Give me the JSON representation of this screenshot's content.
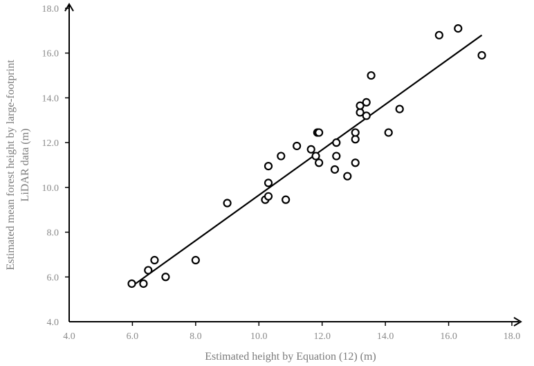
{
  "chart_data": {
    "type": "scatter",
    "xlabel": "Estimated height by Equation (12) (m)",
    "ylabel_lines": [
      "Estimated mean forest height by large-footprint",
      "LiDAR data (m)"
    ],
    "xlim": [
      4.0,
      18.0
    ],
    "ylim": [
      4.0,
      18.0
    ],
    "xticks": [
      "4.0",
      "6.0",
      "8.0",
      "10.0",
      "12.0",
      "14.0",
      "16.0",
      "18.0"
    ],
    "yticks": [
      "4.0",
      "6.0",
      "8.0",
      "10.0",
      "12.0",
      "14.0",
      "16.0",
      "18.0"
    ],
    "grid": false,
    "points": [
      [
        5.98,
        5.7
      ],
      [
        6.35,
        5.7
      ],
      [
        6.5,
        6.3
      ],
      [
        6.7,
        6.75
      ],
      [
        7.05,
        6.0
      ],
      [
        8.0,
        6.75
      ],
      [
        9.0,
        9.3
      ],
      [
        10.2,
        9.45
      ],
      [
        10.3,
        9.6
      ],
      [
        10.3,
        10.2
      ],
      [
        10.3,
        10.95
      ],
      [
        10.7,
        11.4
      ],
      [
        10.85,
        9.45
      ],
      [
        11.2,
        11.85
      ],
      [
        11.65,
        11.7
      ],
      [
        11.8,
        11.4
      ],
      [
        11.85,
        12.45
      ],
      [
        11.9,
        12.45
      ],
      [
        11.9,
        11.1
      ],
      [
        12.4,
        10.8
      ],
      [
        12.45,
        11.4
      ],
      [
        12.45,
        12.0
      ],
      [
        12.8,
        10.5
      ],
      [
        13.05,
        12.15
      ],
      [
        13.05,
        12.45
      ],
      [
        13.05,
        11.1
      ],
      [
        13.2,
        13.35
      ],
      [
        13.2,
        13.65
      ],
      [
        13.4,
        13.8
      ],
      [
        13.4,
        13.2
      ],
      [
        13.55,
        15.0
      ],
      [
        14.1,
        12.45
      ],
      [
        14.45,
        13.5
      ],
      [
        15.7,
        16.8
      ],
      [
        16.3,
        17.1
      ],
      [
        17.05,
        15.9
      ]
    ],
    "trendline": [
      [
        6.0,
        5.6
      ],
      [
        17.05,
        16.8
      ]
    ]
  }
}
